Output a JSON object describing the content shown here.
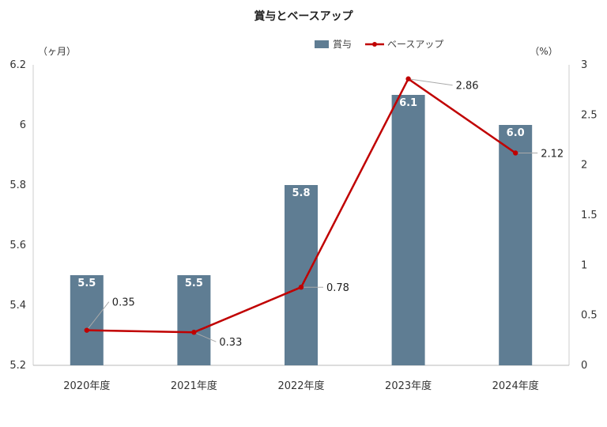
{
  "chart_data": {
    "type": "bar+line",
    "title": "賞与とベースアップ",
    "categories": [
      "2020年度",
      "2021年度",
      "2022年度",
      "2023年度",
      "2024年度"
    ],
    "series": [
      {
        "name": "賞与",
        "type": "bar",
        "axis": "left",
        "color": "#5f7d93",
        "values": [
          5.5,
          5.5,
          5.8,
          6.1,
          6.0
        ],
        "labels": [
          "5.5",
          "5.5",
          "5.8",
          "6.1",
          "6.0"
        ]
      },
      {
        "name": "ベースアップ",
        "type": "line",
        "axis": "right",
        "color": "#c00000",
        "values": [
          0.35,
          0.33,
          0.78,
          2.86,
          2.12
        ],
        "labels": [
          "0.35",
          "0.33",
          "0.78",
          "2.86",
          "2.12"
        ]
      }
    ],
    "left_axis": {
      "unit": "（ヶ月）",
      "ylim": [
        5.2,
        6.2
      ],
      "ticks": [
        5.2,
        5.4,
        5.6,
        5.8,
        6,
        6.2
      ],
      "tick_labels": [
        "5.2",
        "5.4",
        "5.6",
        "5.8",
        "6",
        "6.2"
      ]
    },
    "right_axis": {
      "unit": "（%）",
      "ylim": [
        0,
        3
      ],
      "ticks": [
        0,
        0.5,
        1,
        1.5,
        2,
        2.5,
        3
      ],
      "tick_labels": [
        "0",
        "0.5",
        "1",
        "1.5",
        "2",
        "2.5",
        "3"
      ]
    },
    "grid": false,
    "legend": "top-center"
  }
}
